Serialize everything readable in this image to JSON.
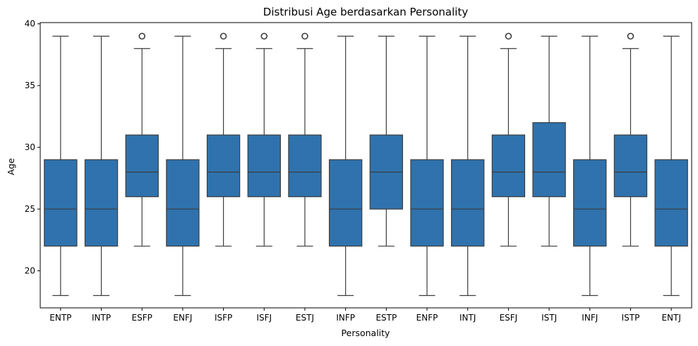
{
  "chart_data": {
    "type": "box",
    "title": "Distribusi Age berdasarkan Personality",
    "xlabel": "Personality",
    "ylabel": "Age",
    "ylim": [
      17.0,
      40.1
    ],
    "yticks": [
      20,
      25,
      30,
      35,
      40
    ],
    "color": "#2f72ad",
    "edge_color": "#3d3d3d",
    "categories": [
      "ENTP",
      "INTP",
      "ESFP",
      "ENFJ",
      "ISFP",
      "ISFJ",
      "ESTJ",
      "INFP",
      "ESTP",
      "ENFP",
      "INTJ",
      "ESFJ",
      "ISTJ",
      "INFJ",
      "ISTP",
      "ENTJ"
    ],
    "boxes": [
      {
        "whislo": 18,
        "q1": 22,
        "med": 25,
        "q3": 29,
        "whishi": 39,
        "fliers": []
      },
      {
        "whislo": 18,
        "q1": 22,
        "med": 25,
        "q3": 29,
        "whishi": 39,
        "fliers": []
      },
      {
        "whislo": 22,
        "q1": 26,
        "med": 28,
        "q3": 31,
        "whishi": 38,
        "fliers": [
          39
        ]
      },
      {
        "whislo": 18,
        "q1": 22,
        "med": 25,
        "q3": 29,
        "whishi": 39,
        "fliers": []
      },
      {
        "whislo": 22,
        "q1": 26,
        "med": 28,
        "q3": 31,
        "whishi": 38,
        "fliers": [
          39
        ]
      },
      {
        "whislo": 22,
        "q1": 26,
        "med": 28,
        "q3": 31,
        "whishi": 38,
        "fliers": [
          39
        ]
      },
      {
        "whislo": 22,
        "q1": 26,
        "med": 28,
        "q3": 31,
        "whishi": 38,
        "fliers": [
          39
        ]
      },
      {
        "whislo": 18,
        "q1": 22,
        "med": 25,
        "q3": 29,
        "whishi": 39,
        "fliers": []
      },
      {
        "whislo": 22,
        "q1": 25,
        "med": 28,
        "q3": 31,
        "whishi": 39,
        "fliers": []
      },
      {
        "whislo": 18,
        "q1": 22,
        "med": 25,
        "q3": 29,
        "whishi": 39,
        "fliers": []
      },
      {
        "whislo": 18,
        "q1": 22,
        "med": 25,
        "q3": 29,
        "whishi": 39,
        "fliers": []
      },
      {
        "whislo": 22,
        "q1": 26,
        "med": 28,
        "q3": 31,
        "whishi": 38,
        "fliers": [
          39
        ]
      },
      {
        "whislo": 22,
        "q1": 26,
        "med": 28,
        "q3": 32,
        "whishi": 39,
        "fliers": []
      },
      {
        "whislo": 18,
        "q1": 22,
        "med": 25,
        "q3": 29,
        "whishi": 39,
        "fliers": []
      },
      {
        "whislo": 22,
        "q1": 26,
        "med": 28,
        "q3": 31,
        "whishi": 38,
        "fliers": [
          39
        ]
      },
      {
        "whislo": 18,
        "q1": 22,
        "med": 25,
        "q3": 29,
        "whishi": 39,
        "fliers": []
      }
    ]
  }
}
